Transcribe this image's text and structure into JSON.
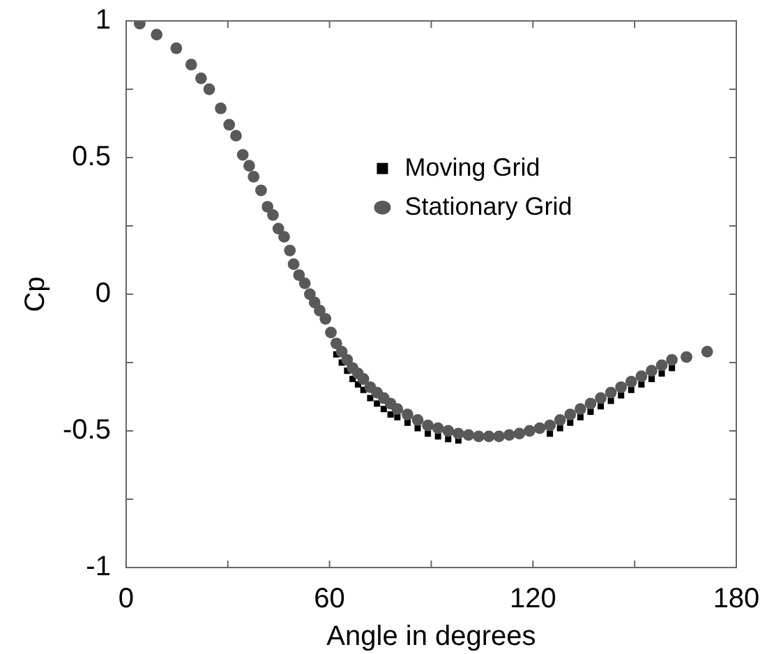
{
  "chart_data": {
    "type": "scatter",
    "xlabel": "Angle in degrees",
    "ylabel": "Cp",
    "xlim": [
      0,
      180
    ],
    "ylim": [
      -1,
      1
    ],
    "xticks": [
      0,
      {
        "value": 30,
        "label": null
      },
      60,
      {
        "value": 90,
        "label": null
      },
      120,
      {
        "value": 150,
        "label": null
      },
      180
    ],
    "yticks": [
      -1,
      {
        "value": -0.75,
        "label": null
      },
      -0.5,
      {
        "value": -0.25,
        "label": null
      },
      0,
      {
        "value": 0.25,
        "label": null
      },
      0.5,
      {
        "value": 0.75,
        "label": null
      },
      1
    ],
    "grid": false,
    "legend": "right",
    "marker": "circle",
    "series": [
      {
        "name": "Moving Grid",
        "color": "#000000",
        "marker": "square",
        "x": [
          62,
          63.6,
          65.2,
          66.8,
          68.4,
          70,
          72,
          74,
          76,
          78,
          80,
          83,
          86,
          89,
          92,
          95,
          98,
          125,
          128,
          131,
          134,
          137,
          140,
          143,
          146,
          149,
          152,
          155,
          158,
          161
        ],
        "values": [
          -0.22,
          -0.25,
          -0.28,
          -0.31,
          -0.33,
          -0.35,
          -0.38,
          -0.4,
          -0.42,
          -0.44,
          -0.45,
          -0.47,
          -0.49,
          -0.51,
          -0.52,
          -0.53,
          -0.535,
          -0.51,
          -0.49,
          -0.47,
          -0.45,
          -0.43,
          -0.41,
          -0.39,
          -0.37,
          -0.35,
          -0.33,
          -0.31,
          -0.29,
          -0.27
        ]
      },
      {
        "name": "Stationary Grid",
        "color": "#595959",
        "x": [
          4,
          9,
          14.8,
          19.2,
          22.1,
          24.5,
          27.9,
          30.4,
          32.4,
          34.4,
          36.3,
          37.6,
          39.8,
          41.7,
          43.3,
          44.9,
          46.6,
          48.3,
          49.4,
          51,
          52.7,
          54.2,
          55.6,
          57.1,
          58.8,
          60.4,
          62,
          63.6,
          65.2,
          66.8,
          68.4,
          70,
          72,
          74,
          76,
          78,
          80,
          83,
          86,
          89,
          92,
          95,
          98,
          101,
          104,
          107,
          110,
          113,
          116,
          119,
          122,
          125,
          128,
          131,
          134,
          137,
          140,
          143,
          146,
          149,
          152,
          155,
          158,
          161,
          165.3,
          171.4
        ],
        "values": [
          0.99,
          0.95,
          0.9,
          0.84,
          0.79,
          0.75,
          0.68,
          0.62,
          0.58,
          0.51,
          0.47,
          0.43,
          0.38,
          0.32,
          0.29,
          0.24,
          0.21,
          0.16,
          0.11,
          0.07,
          0.04,
          0,
          -0.03,
          -0.06,
          -0.09,
          -0.14,
          -0.18,
          -0.21,
          -0.24,
          -0.27,
          -0.29,
          -0.31,
          -0.34,
          -0.36,
          -0.38,
          -0.4,
          -0.42,
          -0.44,
          -0.46,
          -0.48,
          -0.49,
          -0.5,
          -0.51,
          -0.515,
          -0.52,
          -0.52,
          -0.52,
          -0.515,
          -0.51,
          -0.5,
          -0.49,
          -0.48,
          -0.46,
          -0.44,
          -0.42,
          -0.4,
          -0.38,
          -0.36,
          -0.34,
          -0.32,
          -0.3,
          -0.28,
          -0.26,
          -0.24,
          -0.23,
          -0.21
        ]
      }
    ]
  }
}
